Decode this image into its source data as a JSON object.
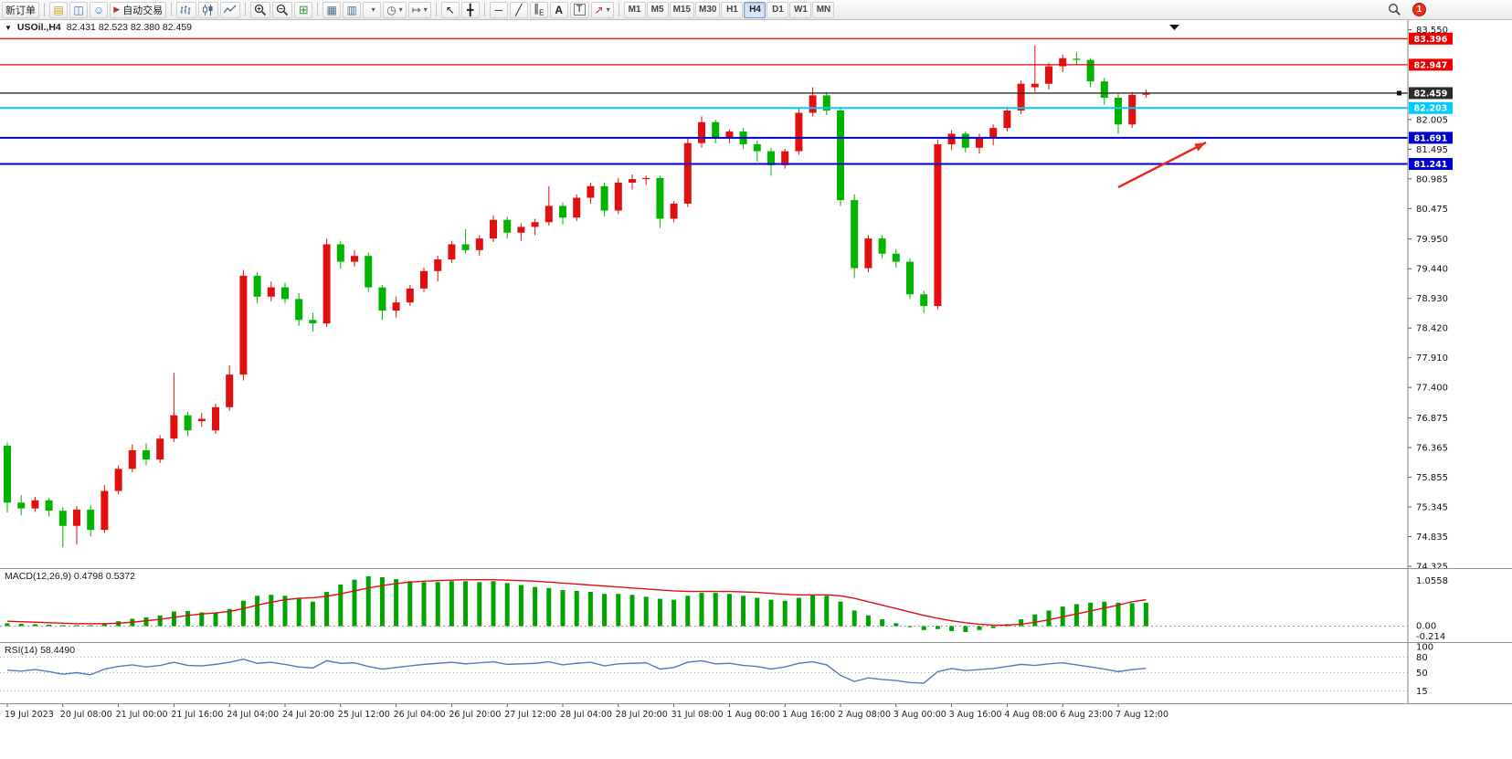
{
  "toolbar": {
    "new_order": "新订单",
    "auto_trading": "自动交易",
    "text_tool": "A",
    "shape_tool": "T",
    "channel_sub": "E",
    "timeframes": [
      "M1",
      "M5",
      "M15",
      "M30",
      "H1",
      "H4",
      "D1",
      "W1",
      "MN"
    ],
    "active_timeframe": "H4",
    "notification_count": "1",
    "glyphs": {
      "market_watch": "▤",
      "data_window": "◫",
      "navigator": "☺",
      "play": "▶",
      "tile": "⊞",
      "arrange": "▦",
      "cascade": "▥",
      "clock": "◷",
      "shift": "↦",
      "cursor": "↖",
      "crosshair": "╋",
      "hline": "─",
      "trendline": "╱",
      "channel": "∥",
      "arrow_tool": "↗",
      "caret": "▾",
      "dropdown": "▼"
    },
    "icons": [
      "new-order",
      "market-watch",
      "data-window",
      "navigator",
      "auto-trading-play",
      "bar-chart",
      "candlestick-chart",
      "line-chart",
      "zoom-in",
      "zoom-out",
      "tile-windows",
      "arrange-windows",
      "cascade-windows",
      "new-chart",
      "period-selector",
      "chart-shift",
      "cursor",
      "crosshair",
      "horizontal-line",
      "trendline",
      "equidistant-channel",
      "text-tool",
      "text-label",
      "arrow-tool",
      "search",
      "notification"
    ]
  },
  "chart": {
    "title": "USOil.,H4 82.431 82.523 82.380 82.459",
    "symbol_period": "USOil.,H4",
    "ohlc_text": "82.431 82.523 82.380 82.459"
  },
  "price_axis": {
    "ticks": [
      "83.550",
      "82.005",
      "81.495",
      "80.985",
      "80.475",
      "79.950",
      "79.440",
      "78.930",
      "78.420",
      "77.910",
      "77.400",
      "76.875",
      "76.365",
      "75.855",
      "75.345",
      "74.835",
      "74.325"
    ]
  },
  "macd": {
    "label": "MACD(12,26,9) 0.4798 0.5372",
    "axis": [
      "1.0558",
      "0.00",
      "-0.214"
    ]
  },
  "rsi": {
    "label": "RSI(14) 58.4490",
    "axis": [
      "100",
      "80",
      "50",
      "15"
    ]
  },
  "time_axis": [
    "19 Jul 2023",
    "20 Jul 08:00",
    "21 Jul 00:00",
    "21 Jul 16:00",
    "24 Jul 04:00",
    "24 Jul 20:00",
    "25 Jul 12:00",
    "26 Jul 04:00",
    "26 Jul 20:00",
    "27 Jul 12:00",
    "28 Jul 04:00",
    "28 Jul 20:00",
    "31 Jul 08:00",
    "1 Aug 00:00",
    "1 Aug 16:00",
    "2 Aug 08:00",
    "3 Aug 00:00",
    "3 Aug 16:00",
    "4 Aug 08:00",
    "6 Aug 23:00",
    "7 Aug 12:00"
  ],
  "chart_data": {
    "type": "candlestick",
    "title": "USOil.,H4",
    "timeframe": "H4",
    "ohlc_current": {
      "open": 82.431,
      "high": 82.523,
      "low": 82.38,
      "close": 82.459
    },
    "ylim": [
      74.325,
      83.62
    ],
    "colors": {
      "up": "#e01010",
      "down": "#00b400",
      "macd": "#00a400",
      "signal": "#e01010",
      "rsi": "#4f7bbf",
      "red_line": "#ee0000",
      "black_line": "#2b2b2b",
      "cyan_line": "#00ccff",
      "blue_line": "#0000cc"
    },
    "candles": [
      [
        76.4,
        76.45,
        75.25,
        75.42
      ],
      [
        75.42,
        75.55,
        75.2,
        75.32
      ],
      [
        75.32,
        75.52,
        75.26,
        75.46
      ],
      [
        75.46,
        75.5,
        75.18,
        75.28
      ],
      [
        75.28,
        75.34,
        74.65,
        75.02
      ],
      [
        75.02,
        75.36,
        74.7,
        75.3
      ],
      [
        75.3,
        75.38,
        74.84,
        74.95
      ],
      [
        74.95,
        75.72,
        74.9,
        75.62
      ],
      [
        75.62,
        76.06,
        75.56,
        76.0
      ],
      [
        76.0,
        76.42,
        75.94,
        76.32
      ],
      [
        76.32,
        76.44,
        76.06,
        76.16
      ],
      [
        76.16,
        76.58,
        76.1,
        76.52
      ],
      [
        76.52,
        77.65,
        76.46,
        76.92
      ],
      [
        76.92,
        76.98,
        76.56,
        76.66
      ],
      [
        76.82,
        76.96,
        76.72,
        76.86
      ],
      [
        76.66,
        77.12,
        76.6,
        77.06
      ],
      [
        77.06,
        77.78,
        77.0,
        77.62
      ],
      [
        77.62,
        79.42,
        77.52,
        79.32
      ],
      [
        79.32,
        79.38,
        78.84,
        78.96
      ],
      [
        78.96,
        79.22,
        78.88,
        79.12
      ],
      [
        79.12,
        79.2,
        78.84,
        78.92
      ],
      [
        78.92,
        79.02,
        78.46,
        78.56
      ],
      [
        78.56,
        78.68,
        78.36,
        78.5
      ],
      [
        78.5,
        79.96,
        78.44,
        79.86
      ],
      [
        79.86,
        79.92,
        79.44,
        79.56
      ],
      [
        79.56,
        79.76,
        79.48,
        79.66
      ],
      [
        79.66,
        79.72,
        79.04,
        79.12
      ],
      [
        79.12,
        79.16,
        78.56,
        78.72
      ],
      [
        78.72,
        78.96,
        78.6,
        78.86
      ],
      [
        78.86,
        79.16,
        78.8,
        79.1
      ],
      [
        79.1,
        79.46,
        79.04,
        79.4
      ],
      [
        79.4,
        79.66,
        79.22,
        79.6
      ],
      [
        79.6,
        79.92,
        79.54,
        79.86
      ],
      [
        79.86,
        80.12,
        79.7,
        79.76
      ],
      [
        79.76,
        80.02,
        79.66,
        79.96
      ],
      [
        79.96,
        80.36,
        79.9,
        80.28
      ],
      [
        80.28,
        80.34,
        79.96,
        80.06
      ],
      [
        80.06,
        80.22,
        79.92,
        80.16
      ],
      [
        80.16,
        80.3,
        80.02,
        80.24
      ],
      [
        80.24,
        80.86,
        80.18,
        80.52
      ],
      [
        80.52,
        80.58,
        80.2,
        80.32
      ],
      [
        80.32,
        80.72,
        80.26,
        80.66
      ],
      [
        80.66,
        80.92,
        80.56,
        80.86
      ],
      [
        80.86,
        80.92,
        80.34,
        80.44
      ],
      [
        80.44,
        81.0,
        80.38,
        80.92
      ],
      [
        80.92,
        81.06,
        80.8,
        80.98
      ],
      [
        80.98,
        81.04,
        80.88,
        81.0
      ],
      [
        81.0,
        81.04,
        80.14,
        80.3
      ],
      [
        80.3,
        80.6,
        80.24,
        80.56
      ],
      [
        80.56,
        81.7,
        80.5,
        81.6
      ],
      [
        81.6,
        82.06,
        81.52,
        81.96
      ],
      [
        81.96,
        82.0,
        81.6,
        81.68
      ],
      [
        81.68,
        81.84,
        81.6,
        81.8
      ],
      [
        81.8,
        81.86,
        81.5,
        81.58
      ],
      [
        81.58,
        81.64,
        81.28,
        81.46
      ],
      [
        81.46,
        81.52,
        81.04,
        81.22
      ],
      [
        81.22,
        81.5,
        81.16,
        81.46
      ],
      [
        81.46,
        82.22,
        81.4,
        82.12
      ],
      [
        82.12,
        82.56,
        82.06,
        82.42
      ],
      [
        82.42,
        82.48,
        82.08,
        82.16
      ],
      [
        82.16,
        82.22,
        80.52,
        80.62
      ],
      [
        80.62,
        80.72,
        79.28,
        79.45
      ],
      [
        79.45,
        80.02,
        79.38,
        79.96
      ],
      [
        79.96,
        80.02,
        79.62,
        79.7
      ],
      [
        79.7,
        79.78,
        79.46,
        79.56
      ],
      [
        79.56,
        79.62,
        78.92,
        79.0
      ],
      [
        79.0,
        79.06,
        78.68,
        78.8
      ],
      [
        78.8,
        81.66,
        78.74,
        81.58
      ],
      [
        81.58,
        81.82,
        81.48,
        81.76
      ],
      [
        81.76,
        81.8,
        81.44,
        81.52
      ],
      [
        81.52,
        81.76,
        81.42,
        81.7
      ],
      [
        81.7,
        81.92,
        81.56,
        81.86
      ],
      [
        81.86,
        82.22,
        81.8,
        82.16
      ],
      [
        82.16,
        82.68,
        82.1,
        82.62
      ],
      [
        82.56,
        83.28,
        82.48,
        82.62
      ],
      [
        82.62,
        82.98,
        82.52,
        82.92
      ],
      [
        82.92,
        83.12,
        82.82,
        83.06
      ],
      [
        83.05,
        83.16,
        82.95,
        83.03
      ],
      [
        83.03,
        83.06,
        82.56,
        82.66
      ],
      [
        82.66,
        82.72,
        82.26,
        82.38
      ],
      [
        82.38,
        82.44,
        81.76,
        81.92
      ],
      [
        81.92,
        82.48,
        81.86,
        82.43
      ],
      [
        82.431,
        82.523,
        82.38,
        82.459
      ]
    ],
    "hlines": [
      {
        "price": 83.396,
        "label": "83.396",
        "color": "#ee0000",
        "width": 1.3
      },
      {
        "price": 82.947,
        "label": "82.947",
        "color": "#ee0000",
        "width": 1.3
      },
      {
        "price": 82.459,
        "label": "82.459",
        "color": "#2b2b2b",
        "width": 1.4,
        "handle": true
      },
      {
        "price": 82.203,
        "label": "82.203",
        "color": "#00ccff",
        "width": 2
      },
      {
        "price": 81.691,
        "label": "81.691",
        "color": "#0000cc",
        "width": 2
      },
      {
        "price": 81.241,
        "label": "81.241",
        "color": "#0000cc",
        "width": 2
      }
    ],
    "arrow": {
      "from": [
        1224,
        183
      ],
      "to": [
        1320,
        134
      ],
      "color": "#e8291c"
    },
    "macd": {
      "range": [
        -0.214,
        1.0558
      ],
      "hist": [
        0.06,
        0.05,
        0.04,
        0.03,
        0.02,
        0.02,
        0.02,
        0.05,
        0.1,
        0.15,
        0.18,
        0.22,
        0.3,
        0.31,
        0.28,
        0.28,
        0.35,
        0.52,
        0.62,
        0.64,
        0.62,
        0.56,
        0.5,
        0.7,
        0.85,
        0.95,
        1.02,
        1.0,
        0.96,
        0.92,
        0.9,
        0.9,
        0.92,
        0.92,
        0.9,
        0.92,
        0.88,
        0.84,
        0.8,
        0.78,
        0.74,
        0.72,
        0.7,
        0.66,
        0.66,
        0.64,
        0.6,
        0.56,
        0.54,
        0.62,
        0.68,
        0.68,
        0.66,
        0.62,
        0.58,
        0.54,
        0.52,
        0.58,
        0.64,
        0.62,
        0.5,
        0.32,
        0.22,
        0.14,
        0.06,
        -0.02,
        -0.08,
        -0.06,
        -0.1,
        -0.12,
        -0.08,
        -0.04,
        0.04,
        0.14,
        0.24,
        0.32,
        0.4,
        0.45,
        0.48,
        0.5,
        0.48,
        0.47,
        0.48
      ],
      "signal": [
        0.1,
        0.09,
        0.08,
        0.07,
        0.06,
        0.05,
        0.05,
        0.05,
        0.06,
        0.08,
        0.11,
        0.14,
        0.18,
        0.22,
        0.25,
        0.27,
        0.3,
        0.36,
        0.43,
        0.49,
        0.54,
        0.57,
        0.58,
        0.61,
        0.66,
        0.72,
        0.78,
        0.83,
        0.87,
        0.9,
        0.92,
        0.93,
        0.94,
        0.95,
        0.95,
        0.95,
        0.94,
        0.93,
        0.92,
        0.9,
        0.88,
        0.86,
        0.84,
        0.82,
        0.8,
        0.78,
        0.76,
        0.74,
        0.72,
        0.71,
        0.71,
        0.71,
        0.71,
        0.7,
        0.69,
        0.67,
        0.65,
        0.64,
        0.64,
        0.64,
        0.62,
        0.57,
        0.5,
        0.43,
        0.36,
        0.29,
        0.22,
        0.16,
        0.11,
        0.07,
        0.04,
        0.02,
        0.02,
        0.04,
        0.08,
        0.13,
        0.19,
        0.25,
        0.31,
        0.37,
        0.43,
        0.5,
        0.54
      ]
    },
    "rsi": {
      "levels": [
        80,
        50,
        15
      ],
      "values": [
        55,
        53,
        56,
        52,
        47,
        50,
        46,
        57,
        62,
        65,
        61,
        64,
        70,
        64,
        63,
        66,
        70,
        76,
        68,
        70,
        66,
        61,
        59,
        73,
        68,
        69,
        62,
        57,
        60,
        63,
        66,
        68,
        70,
        67,
        69,
        71,
        66,
        67,
        68,
        71,
        65,
        68,
        70,
        63,
        67,
        68,
        69,
        57,
        60,
        70,
        73,
        67,
        68,
        64,
        62,
        57,
        61,
        68,
        71,
        65,
        45,
        33,
        40,
        37,
        35,
        31,
        30,
        52,
        58,
        54,
        56,
        58,
        62,
        66,
        64,
        67,
        69,
        65,
        61,
        57,
        52,
        56,
        58.449
      ]
    }
  }
}
